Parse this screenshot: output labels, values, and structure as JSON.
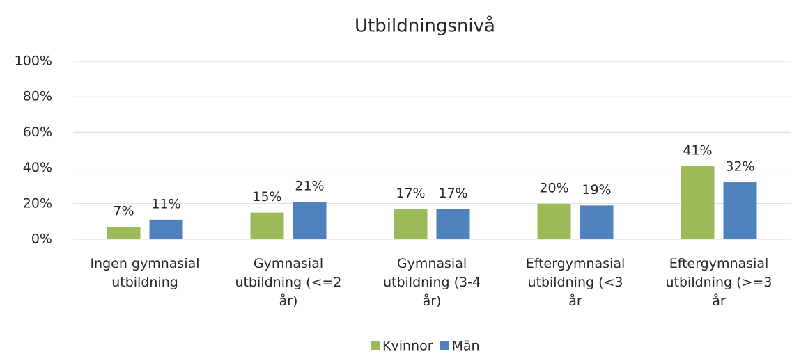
{
  "chart_data": {
    "type": "bar",
    "title": "Utbildningsnivå",
    "categories": [
      "Ingen gymnasial utbildning",
      "Gymnasial utbildning (<=2 år)",
      "Gymnasial utbildning (3-4 år)",
      "Eftergymnasial utbildning (<3 år",
      "Eftergymnasial utbildning (>=3 år"
    ],
    "series": [
      {
        "name": "Kvinnor",
        "color": "#9bbb59",
        "values": [
          7,
          15,
          17,
          20,
          41
        ],
        "value_labels": [
          "7%",
          "15%",
          "17%",
          "20%",
          "41%"
        ]
      },
      {
        "name": "Män",
        "color": "#4f81bd",
        "values": [
          11,
          21,
          17,
          19,
          32
        ],
        "value_labels": [
          "11%",
          "21%",
          "17%",
          "19%",
          "32%"
        ]
      }
    ],
    "ylim": [
      0,
      100
    ],
    "yticks": [
      {
        "value": 0,
        "label": "0%"
      },
      {
        "value": 20,
        "label": "20%"
      },
      {
        "value": 40,
        "label": "40%"
      },
      {
        "value": 60,
        "label": "60%"
      },
      {
        "value": 80,
        "label": "80%"
      },
      {
        "value": 100,
        "label": "100%"
      }
    ],
    "grid": true,
    "legend": "bottom"
  }
}
